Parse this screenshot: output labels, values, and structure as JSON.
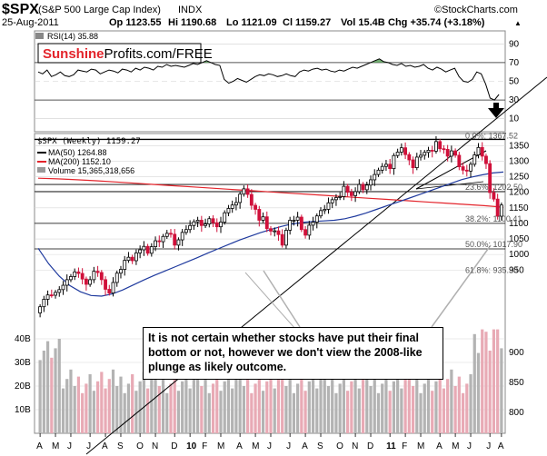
{
  "header": {
    "symbol": "$SPX",
    "name": "(S&P 500 Large Cap Index)",
    "exchange": "INDX",
    "date": "25-Aug-2011",
    "open": "Op 1123.55",
    "high": "Hi 1190.68",
    "low": "Lo 1121.09",
    "close": "Cl 1159.27",
    "volume": "Vol 15.4B",
    "change": "Chg +35.74 (+3.18%)",
    "change_arrow": "▲",
    "source": "©StockCharts.com"
  },
  "brand": {
    "part1": "Sunshine",
    "part2": "Profits.com/FREE",
    "color1": "#e3242b",
    "color2": "#000000"
  },
  "rsi": {
    "label": "RSI(14) 35.88",
    "ticks": [
      "90",
      "70",
      "50",
      "30",
      "10"
    ],
    "tick_values": [
      90,
      70,
      50,
      30,
      10
    ],
    "overbought": 70,
    "oversold": 30,
    "values": [
      60,
      58,
      62,
      55,
      57,
      60,
      56,
      55,
      57,
      62,
      61,
      60,
      63,
      62,
      58,
      60,
      62,
      61,
      59,
      63,
      62,
      60,
      64,
      62,
      65,
      64,
      62,
      66,
      65,
      68,
      66,
      67,
      66,
      65,
      67,
      69,
      68,
      70,
      72,
      70,
      68,
      67,
      52,
      48,
      50,
      53,
      51,
      49,
      52,
      55,
      57,
      56,
      58,
      57,
      55,
      56,
      58,
      56,
      55,
      60,
      62,
      61,
      63,
      64,
      62,
      63,
      61,
      60,
      62,
      61,
      63,
      65,
      64,
      66,
      68,
      70,
      72,
      74,
      71,
      70,
      68,
      67,
      69,
      66,
      67,
      65,
      66,
      68,
      64,
      62,
      65,
      63,
      60,
      62,
      64,
      55,
      50,
      49,
      52,
      60,
      58,
      47,
      32,
      30,
      35.88
    ]
  },
  "price_panel": {
    "legend_title": "$SPX (Weekly) 1159.27",
    "ma50_label": "MA(50) 1264.88",
    "ma200_label": "MA(200) 1152.10",
    "volume_label": "Volume 15,365,318,656",
    "ma50_color": "#1f3a9e",
    "ma200_color": "#e3242b",
    "up_color": "#000000",
    "down_color": "#d0103a",
    "ylim": [
      650,
      1380
    ],
    "y_ticks": [
      "1350",
      "1300",
      "1250",
      "1200",
      "1150",
      "1100",
      "1050",
      "1000",
      "950"
    ],
    "y_tick_values": [
      1350,
      1300,
      1250,
      1200,
      1150,
      1100,
      1050,
      1000,
      950
    ],
    "x_labels": [
      "A",
      "M",
      "J",
      "J",
      "A",
      "S",
      "O",
      "N",
      "D",
      "10",
      "F",
      "M",
      "A",
      "M",
      "J",
      "J",
      "A",
      "S",
      "O",
      "N",
      "D",
      "11",
      "F",
      "M",
      "A",
      "M",
      "J",
      "J",
      "A"
    ],
    "x_label_weeks": [
      0,
      4,
      8,
      13,
      17,
      21,
      26,
      30,
      35,
      39,
      43,
      47,
      52,
      56,
      60,
      65,
      69,
      73,
      78,
      82,
      86,
      91,
      95,
      99,
      104,
      108,
      112,
      117,
      121
    ],
    "bold_x_labels": [
      "10",
      "11"
    ],
    "closes": [
      832,
      856,
      870,
      869,
      878,
      887,
      901,
      919,
      929,
      944,
      939,
      921,
      904,
      919,
      946,
      942,
      919,
      888,
      876,
      910,
      940,
      952,
      981,
      991,
      980,
      1005,
      1015,
      1026,
      1004,
      1025,
      1044,
      1041,
      1058,
      1068,
      1065,
      1030,
      1047,
      1071,
      1080,
      1093,
      1105,
      1110,
      1093,
      1098,
      1115,
      1102,
      1089,
      1104,
      1134,
      1148,
      1159,
      1167,
      1194,
      1211,
      1193,
      1158,
      1145,
      1110,
      1121,
      1083,
      1075,
      1076,
      1064,
      1030,
      1078,
      1110,
      1110,
      1120,
      1080,
      1062,
      1094,
      1104,
      1124,
      1141,
      1145,
      1166,
      1176,
      1183,
      1186,
      1219,
      1200,
      1189,
      1202,
      1225,
      1208,
      1223,
      1240,
      1257,
      1271,
      1283,
      1290,
      1276,
      1318,
      1329,
      1343,
      1321,
      1304,
      1279,
      1313,
      1319,
      1328,
      1335,
      1332,
      1363,
      1340,
      1338,
      1316,
      1333,
      1319,
      1282,
      1271,
      1268,
      1290,
      1320,
      1344,
      1316,
      1292,
      1199,
      1178,
      1123,
      1159
    ],
    "ma50": [
      1020,
      970,
      930,
      900,
      880,
      868,
      866,
      873,
      886,
      902,
      918,
      933,
      947,
      961,
      975,
      989,
      1004,
      1018,
      1032,
      1046,
      1058,
      1070,
      1080,
      1090,
      1098,
      1103,
      1106,
      1108,
      1110,
      1115,
      1123,
      1133,
      1145,
      1157,
      1168,
      1180,
      1192,
      1204,
      1216,
      1228,
      1240,
      1249,
      1256,
      1262,
      1265
    ],
    "ma200": [
      1245,
      1243,
      1240,
      1237,
      1233,
      1229,
      1225,
      1221,
      1217,
      1213,
      1209,
      1205,
      1201,
      1197,
      1193,
      1189,
      1185,
      1181,
      1177,
      1173,
      1169,
      1165,
      1161,
      1157,
      1152
    ],
    "horizontal_levels": [
      1370,
      1225,
      1202,
      1100,
      1018
    ],
    "fib_labels": [
      "0.0%: 1367.52",
      "23.6%: 1202.50",
      "38.2%: 1100.41",
      "50.0%: 1017.90",
      "61.8%: 935.38"
    ],
    "fib_values": [
      1367.52,
      1202.5,
      1100.41,
      1017.9,
      935.38
    ]
  },
  "volume_panel": {
    "ticks": [
      "40B",
      "30B",
      "20B",
      "10B"
    ],
    "tick_values": [
      40,
      30,
      20,
      10
    ],
    "ylim": [
      0,
      45
    ],
    "right_ticks": [
      "900",
      "850",
      "800"
    ],
    "right_tick_values": [
      900,
      850,
      800
    ]
  },
  "annotation": {
    "text": "It is not certain whether stocks have put their final bottom or not, however we don't view the 2008-like plunge as likely outcome."
  },
  "chart_data": {
    "type": "candlestick",
    "title": "$SPX (S&P 500 Large Cap Index) INDX Weekly",
    "xlabel": "",
    "ylabel": "",
    "ylim": [
      650,
      1380
    ],
    "first_week": "Apr 2009",
    "last_week": "Aug 2011",
    "last_close": 1159.27,
    "indicators": [
      "MA(50) 1264.88",
      "MA(200) 1152.10",
      "RSI(14) 35.88"
    ]
  },
  "meta": {
    "arrow_icon": "down-arrow-icon"
  }
}
